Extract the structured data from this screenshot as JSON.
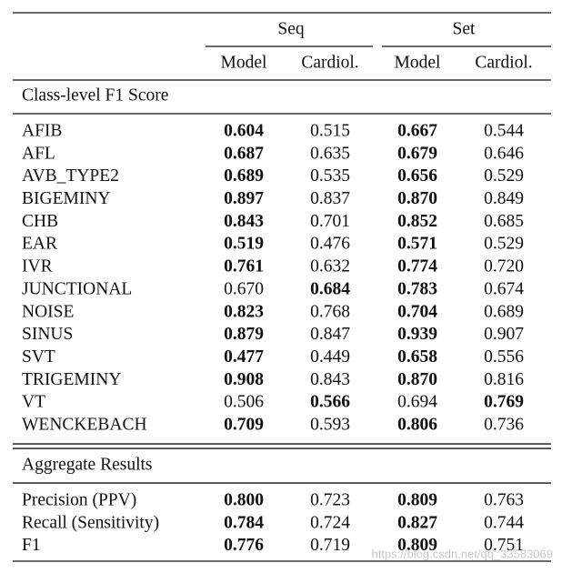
{
  "header": {
    "groups": [
      "Seq",
      "Set"
    ],
    "columns": [
      "Model",
      "Cardiol.",
      "Model",
      "Cardiol."
    ]
  },
  "sections": [
    {
      "title": "Class-level F1 Score",
      "rows": [
        {
          "label": "AFIB",
          "cells": [
            "0.604",
            "0.515",
            "0.667",
            "0.544"
          ],
          "bold": [
            true,
            false,
            true,
            false
          ]
        },
        {
          "label": "AFL",
          "cells": [
            "0.687",
            "0.635",
            "0.679",
            "0.646"
          ],
          "bold": [
            true,
            false,
            true,
            false
          ]
        },
        {
          "label": "AVB_TYPE2",
          "cells": [
            "0.689",
            "0.535",
            "0.656",
            "0.529"
          ],
          "bold": [
            true,
            false,
            true,
            false
          ]
        },
        {
          "label": "BIGEMINY",
          "cells": [
            "0.897",
            "0.837",
            "0.870",
            "0.849"
          ],
          "bold": [
            true,
            false,
            true,
            false
          ]
        },
        {
          "label": "CHB",
          "cells": [
            "0.843",
            "0.701",
            "0.852",
            "0.685"
          ],
          "bold": [
            true,
            false,
            true,
            false
          ]
        },
        {
          "label": "EAR",
          "cells": [
            "0.519",
            "0.476",
            "0.571",
            "0.529"
          ],
          "bold": [
            true,
            false,
            true,
            false
          ]
        },
        {
          "label": "IVR",
          "cells": [
            "0.761",
            "0.632",
            "0.774",
            "0.720"
          ],
          "bold": [
            true,
            false,
            true,
            false
          ]
        },
        {
          "label": "JUNCTIONAL",
          "cells": [
            "0.670",
            "0.684",
            "0.783",
            "0.674"
          ],
          "bold": [
            false,
            true,
            true,
            false
          ]
        },
        {
          "label": "NOISE",
          "cells": [
            "0.823",
            "0.768",
            "0.704",
            "0.689"
          ],
          "bold": [
            true,
            false,
            true,
            false
          ]
        },
        {
          "label": "SINUS",
          "cells": [
            "0.879",
            "0.847",
            "0.939",
            "0.907"
          ],
          "bold": [
            true,
            false,
            true,
            false
          ]
        },
        {
          "label": "SVT",
          "cells": [
            "0.477",
            "0.449",
            "0.658",
            "0.556"
          ],
          "bold": [
            true,
            false,
            true,
            false
          ]
        },
        {
          "label": "TRIGEMINY",
          "cells": [
            "0.908",
            "0.843",
            "0.870",
            "0.816"
          ],
          "bold": [
            true,
            false,
            true,
            false
          ]
        },
        {
          "label": "VT",
          "cells": [
            "0.506",
            "0.566",
            "0.694",
            "0.769"
          ],
          "bold": [
            false,
            true,
            false,
            true
          ]
        },
        {
          "label": "WENCKEBACH",
          "cells": [
            "0.709",
            "0.593",
            "0.806",
            "0.736"
          ],
          "bold": [
            true,
            false,
            true,
            false
          ]
        }
      ]
    },
    {
      "title": "Aggregate Results",
      "rows": [
        {
          "label": "Precision (PPV)",
          "cells": [
            "0.800",
            "0.723",
            "0.809",
            "0.763"
          ],
          "bold": [
            true,
            false,
            true,
            false
          ]
        },
        {
          "label": "Recall (Sensitivity)",
          "cells": [
            "0.784",
            "0.724",
            "0.827",
            "0.744"
          ],
          "bold": [
            true,
            false,
            true,
            false
          ]
        },
        {
          "label": "F1",
          "cells": [
            "0.776",
            "0.719",
            "0.809",
            "0.751"
          ],
          "bold": [
            true,
            false,
            true,
            false
          ]
        }
      ]
    }
  ],
  "watermark": "https://blog.csdn.net/qq_33583069"
}
